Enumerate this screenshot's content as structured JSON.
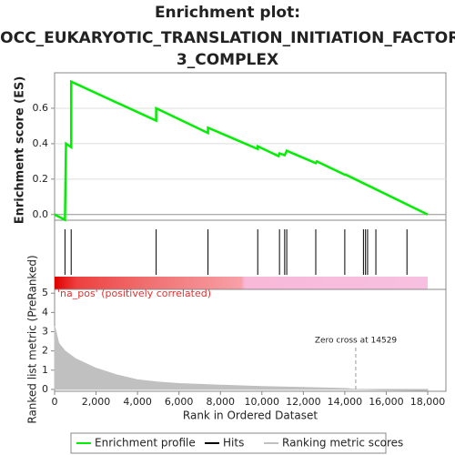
{
  "chart_data": [
    {
      "type": "line",
      "title": [
        "Enrichment plot:",
        "GOCC_EUKARYOTIC_TRANSLATION_INITIATION_FACTOR_",
        "3_COMPLEX"
      ],
      "y_label": "Enrichment score (ES)",
      "xlim": [
        0,
        18878
      ],
      "ylim": [
        -0.032,
        0.8
      ],
      "yticks": [
        {
          "value": 0,
          "label": "0.0"
        },
        0.2,
        0.4,
        0.6
      ],
      "grid": true,
      "series": [
        {
          "name": "Enrichment profile",
          "color": "#00ee00",
          "x": [
            0,
            500,
            550,
            800,
            800,
            4900,
            4900,
            7400,
            7400,
            9800,
            9800,
            10800,
            10850,
            11100,
            11200,
            12600,
            12650,
            14000,
            14050,
            18000
          ],
          "values": [
            0,
            -0.03,
            0.4,
            0.38,
            0.75,
            0.53,
            0.6,
            0.46,
            0.49,
            0.37,
            0.385,
            0.33,
            0.345,
            0.335,
            0.36,
            0.29,
            0.3,
            0.225,
            0.225,
            0
          ]
        }
      ],
      "hits": {
        "name": "Hits",
        "color": "#000000",
        "x": [
          500,
          800,
          4900,
          7400,
          9800,
          10850,
          11100,
          11200,
          12600,
          14000,
          14900,
          15000,
          15100,
          15500,
          17000
        ]
      }
    },
    {
      "type": "area",
      "x_label": "Rank in Ordered Dataset",
      "y_label": "Ranked list metric (PreRanked)",
      "band_label": "'na_pos' (positively correlated)",
      "annotation": "Zero cross at 14529",
      "zero_cross": 14529,
      "xlim": [
        0,
        18878
      ],
      "ylim": [
        -0.1,
        5.2
      ],
      "xticks": [
        0,
        {
          "value": 2000,
          "label": "2,000"
        },
        {
          "value": 4000,
          "label": "4,000"
        },
        {
          "value": 6000,
          "label": "6,000"
        },
        {
          "value": 8000,
          "label": "8,000"
        },
        {
          "value": 10000,
          "label": "10,000"
        },
        {
          "value": 12000,
          "label": "12,000"
        },
        {
          "value": 14000,
          "label": "14,000"
        },
        {
          "value": 16000,
          "label": "16,000"
        },
        {
          "value": 18000,
          "label": "18,000"
        }
      ],
      "yticks": [
        0,
        1,
        2,
        3,
        4,
        5
      ],
      "series": [
        {
          "name": "Ranking metric scores",
          "color": "#c0c0c0",
          "x": [
            0,
            200,
            500,
            1000,
            2000,
            3000,
            4000,
            5000,
            6000,
            8000,
            10000,
            12000,
            14000,
            14529,
            16000,
            18000
          ],
          "values": [
            3.3,
            2.4,
            2.0,
            1.6,
            1.1,
            0.75,
            0.5,
            0.38,
            0.3,
            0.22,
            0.15,
            0.1,
            0.05,
            0,
            -0.03,
            -0.06
          ]
        }
      ]
    }
  ]
}
